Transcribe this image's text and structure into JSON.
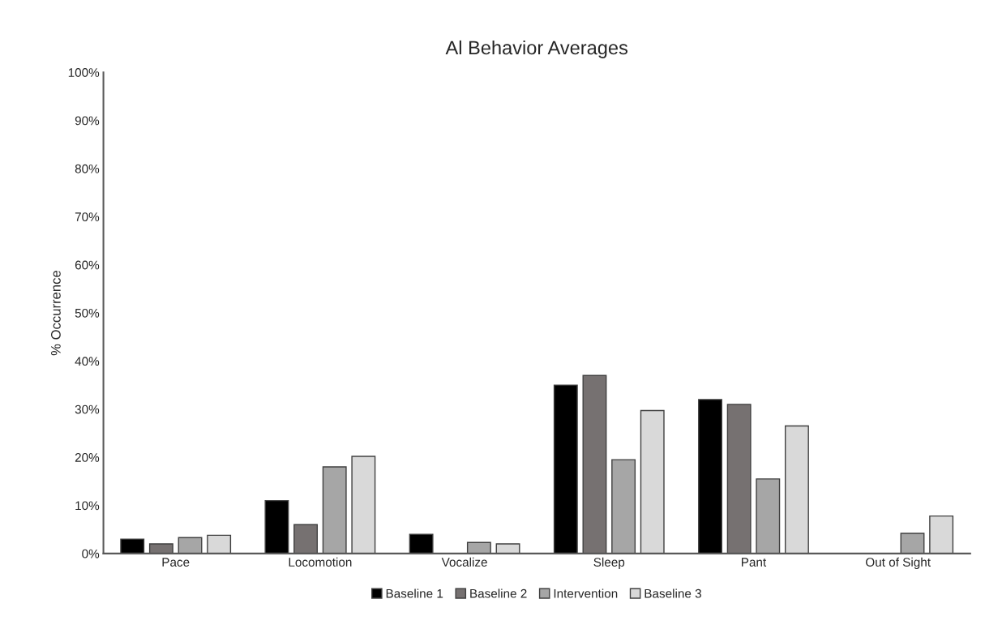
{
  "chart_data": {
    "type": "bar",
    "title": "Al Behavior Averages",
    "ylabel": "% Occurrence",
    "categories": [
      "Pace",
      "Locomotion",
      "Vocalize",
      "Sleep",
      "Pant",
      "Out of Sight"
    ],
    "series": [
      {
        "name": "Baseline 1",
        "color": "#000000",
        "values": [
          3,
          11,
          4,
          35,
          32,
          null
        ]
      },
      {
        "name": "Baseline 2",
        "color": "#767171",
        "values": [
          2,
          6,
          null,
          37,
          31,
          null
        ]
      },
      {
        "name": "Intervention",
        "color": "#a6a6a6",
        "values": [
          3.3,
          18,
          2.3,
          19.5,
          15.5,
          4.2
        ]
      },
      {
        "name": "Baseline 3",
        "color": "#d9d9d9",
        "values": [
          3.8,
          20.2,
          2,
          29.7,
          26.5,
          7.8
        ]
      }
    ],
    "ylim": [
      0,
      100
    ],
    "yticks": [
      {
        "value": 0,
        "label": "0%"
      },
      {
        "value": 10,
        "label": "10%"
      },
      {
        "value": 20,
        "label": "20%"
      },
      {
        "value": 30,
        "label": "30%"
      },
      {
        "value": 40,
        "label": "40%"
      },
      {
        "value": 50,
        "label": "50%"
      },
      {
        "value": 60,
        "label": "60%"
      },
      {
        "value": 70,
        "label": "70%"
      },
      {
        "value": 80,
        "label": "80%"
      },
      {
        "value": 90,
        "label": "90%"
      },
      {
        "value": 100,
        "label": "100%"
      }
    ],
    "grid": false,
    "legend": "bottom"
  }
}
